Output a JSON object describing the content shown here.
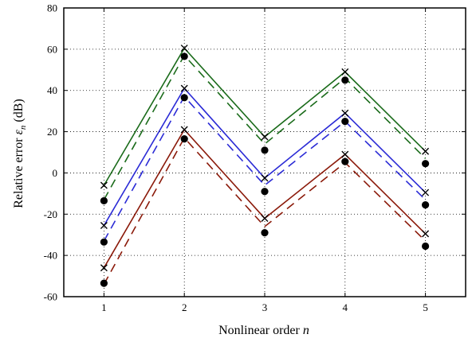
{
  "chart_data": {
    "type": "line",
    "title": "",
    "xlabel": {
      "text": "Nonlinear order ",
      "symbol": "n"
    },
    "ylabel": {
      "text": "Relative error ",
      "symbol": "ε",
      "subscript": "n",
      "unit": " (dB)"
    },
    "xlim": [
      0.5,
      5.5
    ],
    "ylim": [
      -60,
      80
    ],
    "xticks": [
      1,
      2,
      3,
      4,
      5
    ],
    "yticks": [
      -60,
      -40,
      -20,
      0,
      20,
      40,
      60,
      80
    ],
    "grid": true,
    "grid_style": "dotted",
    "legend": "none",
    "x": [
      1,
      2,
      3,
      4,
      5
    ],
    "series": [
      {
        "color": "#1a6b1a",
        "style": "solid",
        "marker": "x",
        "values": [
          -6,
          60.5,
          17.5,
          49,
          10.5
        ]
      },
      {
        "color": "#1a6b1a",
        "style": "dashed",
        "marker": "none",
        "values": [
          -13,
          57,
          14,
          46,
          7
        ]
      },
      {
        "color": "#2b2bd6",
        "style": "solid",
        "marker": "x",
        "values": [
          -25.5,
          41,
          -2.5,
          29,
          -9.5
        ]
      },
      {
        "color": "#2b2bd6",
        "style": "dashed",
        "marker": "none",
        "values": [
          -33,
          37,
          -6,
          25,
          -13
        ]
      },
      {
        "color": "#8b1a0a",
        "style": "solid",
        "marker": "x",
        "values": [
          -46,
          21,
          -22,
          9,
          -29.5
        ]
      },
      {
        "color": "#8b1a0a",
        "style": "dashed",
        "marker": "none",
        "values": [
          -54,
          17,
          -26,
          5,
          -33
        ]
      },
      {
        "color": "#000000",
        "style": "none",
        "marker": "dot",
        "values": [
          -13.5,
          56.5,
          11,
          45,
          4.5
        ]
      },
      {
        "color": "#000000",
        "style": "none",
        "marker": "dot",
        "values": [
          -33.5,
          36.5,
          -9,
          25,
          -15.5
        ]
      },
      {
        "color": "#000000",
        "style": "none",
        "marker": "dot",
        "values": [
          -53.5,
          16.5,
          -29,
          5.5,
          -35.5
        ]
      }
    ]
  }
}
